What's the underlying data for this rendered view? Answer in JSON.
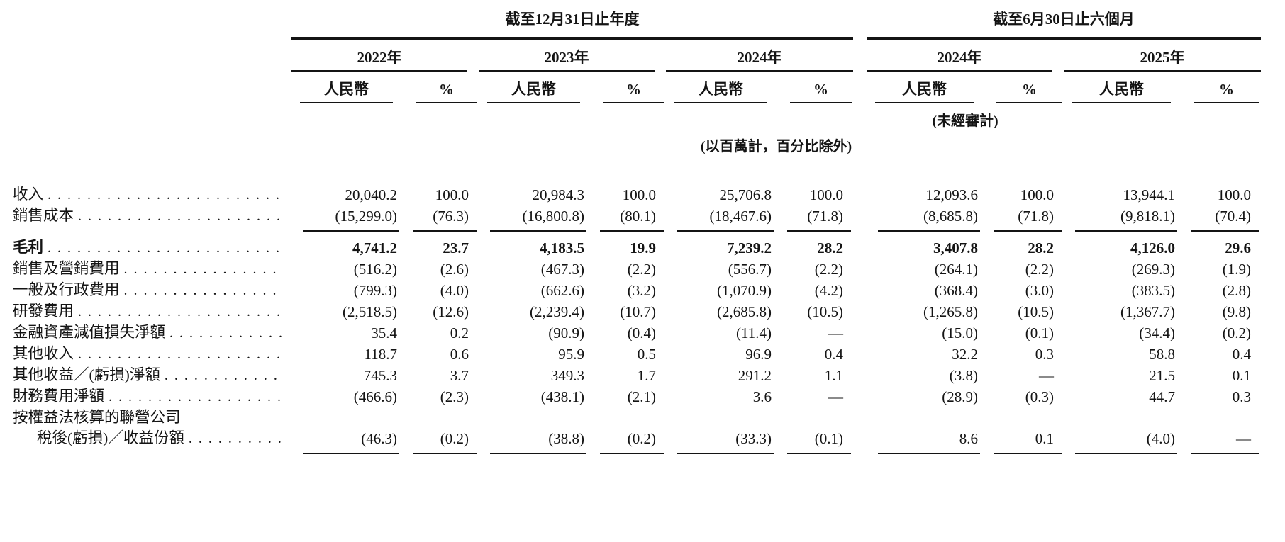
{
  "document": {
    "colors": {
      "text": "#141414",
      "background": "#ffffff",
      "rule": "#141414"
    },
    "table": {
      "header": {
        "group_annual": "截至12月31日止年度",
        "group_interim": "截至6月30日止六個月",
        "years": [
          "2022年",
          "2023年",
          "2024年",
          "2024年",
          "2025年"
        ],
        "currency_label": "人民幣",
        "percent_label": "%",
        "unaudited_note": "(未經審計)",
        "unit_note": "(以百萬計，百分比除外)"
      },
      "rows": [
        {
          "label": "收入",
          "bold": false,
          "indent": false,
          "rule_after": false,
          "values": [
            "20,040.2",
            "100.0",
            "20,984.3",
            "100.0",
            "25,706.8",
            "100.0",
            "12,093.6",
            "100.0",
            "13,944.1",
            "100.0"
          ]
        },
        {
          "label": "銷售成本",
          "bold": false,
          "indent": false,
          "rule_after": true,
          "values": [
            "(15,299.0)",
            "(76.3)",
            "(16,800.8)",
            "(80.1)",
            "(18,467.6)",
            "(71.8)",
            "(8,685.8)",
            "(71.8)",
            "(9,818.1)",
            "(70.4)"
          ]
        },
        {
          "label": "毛利",
          "bold": true,
          "indent": false,
          "rule_after": false,
          "values": [
            "4,741.2",
            "23.7",
            "4,183.5",
            "19.9",
            "7,239.2",
            "28.2",
            "3,407.8",
            "28.2",
            "4,126.0",
            "29.6"
          ]
        },
        {
          "label": "銷售及營銷費用",
          "bold": false,
          "indent": false,
          "rule_after": false,
          "values": [
            "(516.2)",
            "(2.6)",
            "(467.3)",
            "(2.2)",
            "(556.7)",
            "(2.2)",
            "(264.1)",
            "(2.2)",
            "(269.3)",
            "(1.9)"
          ]
        },
        {
          "label": "一般及行政費用",
          "bold": false,
          "indent": false,
          "rule_after": false,
          "values": [
            "(799.3)",
            "(4.0)",
            "(662.6)",
            "(3.2)",
            "(1,070.9)",
            "(4.2)",
            "(368.4)",
            "(3.0)",
            "(383.5)",
            "(2.8)"
          ]
        },
        {
          "label": "研發費用",
          "bold": false,
          "indent": false,
          "rule_after": false,
          "values": [
            "(2,518.5)",
            "(12.6)",
            "(2,239.4)",
            "(10.7)",
            "(2,685.8)",
            "(10.5)",
            "(1,265.8)",
            "(10.5)",
            "(1,367.7)",
            "(9.8)"
          ]
        },
        {
          "label": "金融資產減值損失淨額",
          "bold": false,
          "indent": false,
          "rule_after": false,
          "values": [
            "35.4",
            "0.2",
            "(90.9)",
            "(0.4)",
            "(11.4)",
            "—",
            "(15.0)",
            "(0.1)",
            "(34.4)",
            "(0.2)"
          ]
        },
        {
          "label": "其他收入",
          "bold": false,
          "indent": false,
          "rule_after": false,
          "values": [
            "118.7",
            "0.6",
            "95.9",
            "0.5",
            "96.9",
            "0.4",
            "32.2",
            "0.3",
            "58.8",
            "0.4"
          ]
        },
        {
          "label": "其他收益／(虧損)淨額",
          "bold": false,
          "indent": false,
          "rule_after": false,
          "values": [
            "745.3",
            "3.7",
            "349.3",
            "1.7",
            "291.2",
            "1.1",
            "(3.8)",
            "—",
            "21.5",
            "0.1"
          ]
        },
        {
          "label": "財務費用淨額",
          "bold": false,
          "indent": false,
          "rule_after": false,
          "values": [
            "(466.6)",
            "(2.3)",
            "(438.1)",
            "(2.1)",
            "3.6",
            "—",
            "(28.9)",
            "(0.3)",
            "44.7",
            "0.3"
          ]
        },
        {
          "label": "按權益法核算的聯營公司",
          "bold": false,
          "indent": false,
          "rule_after": false,
          "values": []
        },
        {
          "label": "稅後(虧損)／收益份額",
          "bold": false,
          "indent": true,
          "rule_after": true,
          "values": [
            "(46.3)",
            "(0.2)",
            "(38.8)",
            "(0.2)",
            "(33.3)",
            "(0.1)",
            "8.6",
            "0.1",
            "(4.0)",
            "—"
          ]
        }
      ]
    }
  }
}
